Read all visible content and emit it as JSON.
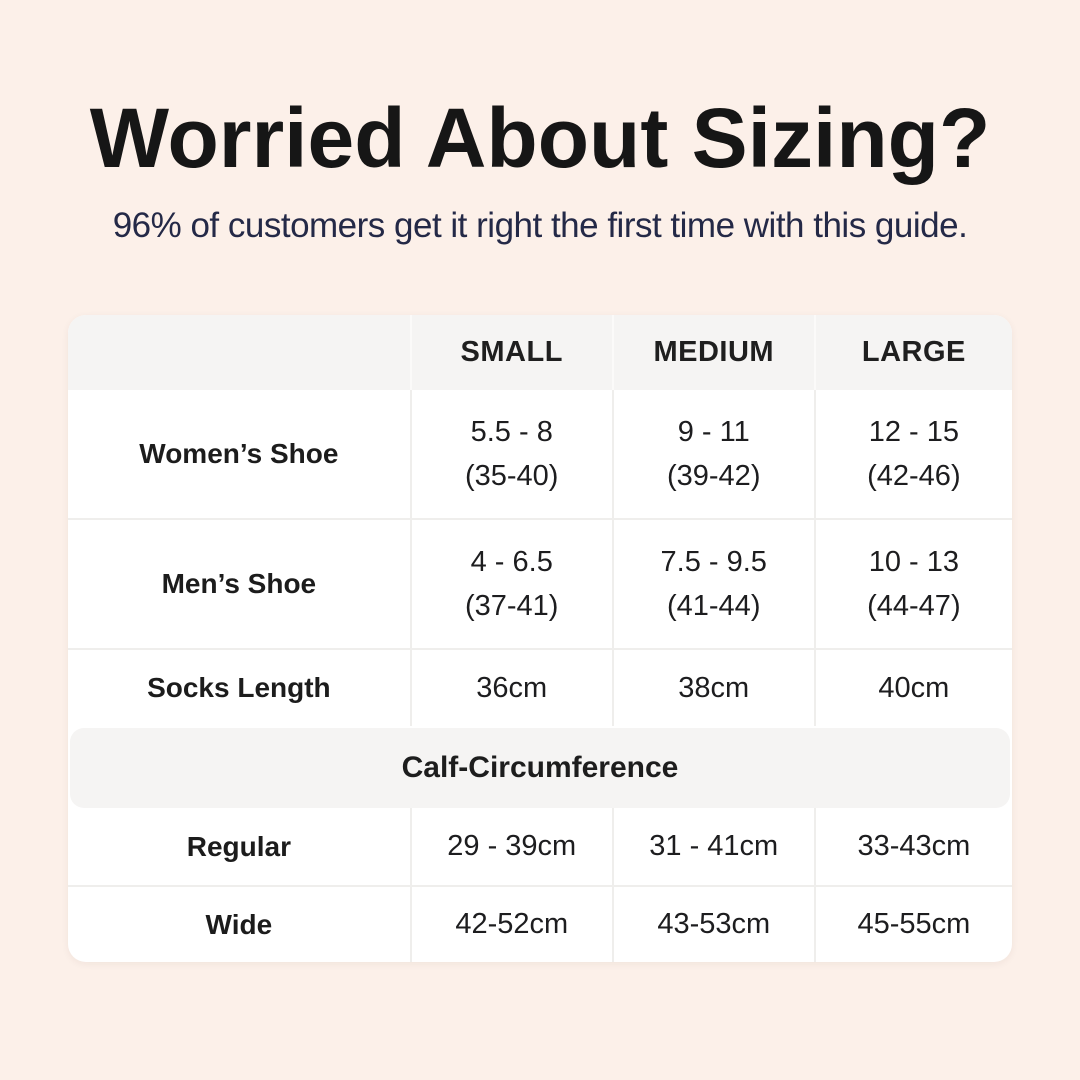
{
  "page": {
    "background_color": "#fcf0e9",
    "title_color": "#161616",
    "subtitle_color": "#242947",
    "table_header_bg": "#f5f4f3",
    "divider_color": "#efeeec"
  },
  "header": {
    "title": "Worried About Sizing?",
    "subtitle": "96% of customers get it right the first time with this guide."
  },
  "table": {
    "columns": [
      "",
      "SMALL",
      "MEDIUM",
      "LARGE"
    ],
    "shoe_rows": [
      {
        "label": "Women’s Shoe",
        "cells": [
          {
            "line1": "5.5 - 8",
            "line2": "(35-40)"
          },
          {
            "line1": "9 - 11",
            "line2": "(39-42)"
          },
          {
            "line1": "12 - 15",
            "line2": "(42-46)"
          }
        ]
      },
      {
        "label": "Men’s Shoe",
        "cells": [
          {
            "line1": "4 - 6.5",
            "line2": "(37-41)"
          },
          {
            "line1": "7.5 - 9.5",
            "line2": "(41-44)"
          },
          {
            "line1": "10 - 13",
            "line2": "(44-47)"
          }
        ]
      }
    ],
    "socks_row": {
      "label": "Socks Length",
      "cells": [
        "36cm",
        "38cm",
        "40cm"
      ]
    },
    "section_header": "Calf-Circumference",
    "calf_rows": [
      {
        "label": "Regular",
        "cells": [
          "29 - 39cm",
          "31 - 41cm",
          "33-43cm"
        ]
      },
      {
        "label": "Wide",
        "cells": [
          "42-52cm",
          "43-53cm",
          "45-55cm"
        ]
      }
    ]
  },
  "chart_data": {
    "type": "table",
    "title": "Worried About Sizing?",
    "subtitle": "96% of customers get it right the first time with this guide.",
    "columns": [
      "",
      "SMALL",
      "MEDIUM",
      "LARGE"
    ],
    "rows": [
      [
        "Women’s Shoe",
        "5.5 - 8 (35-40)",
        "9 - 11 (39-42)",
        "12 - 15 (42-46)"
      ],
      [
        "Men’s Shoe",
        "4 - 6.5 (37-41)",
        "7.5 - 9.5 (41-44)",
        "10 - 13 (44-47)"
      ],
      [
        "Socks Length",
        "36cm",
        "38cm",
        "40cm"
      ],
      [
        "Calf-Circumference"
      ],
      [
        "Regular",
        "29 - 39cm",
        "31 - 41cm",
        "33-43cm"
      ],
      [
        "Wide",
        "42-52cm",
        "43-53cm",
        "45-55cm"
      ]
    ],
    "layout_hints": {
      "section_header_row_index": 3,
      "section_header_spans_all_columns": true,
      "two_line_cells_rows": [
        0,
        1
      ]
    }
  }
}
